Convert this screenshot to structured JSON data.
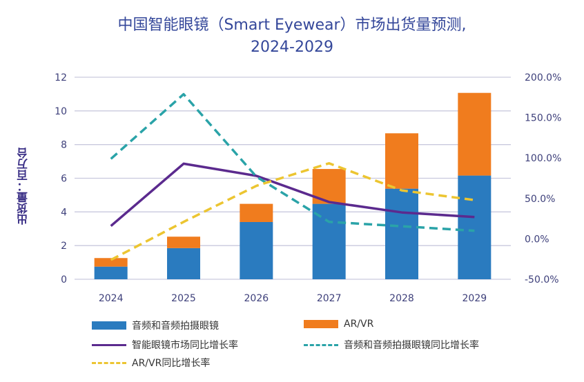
{
  "title_line1": "中国智能眼镜（Smart Eyewear）市场出货量预测,",
  "title_line2": "2024-2029",
  "chart_data": {
    "type": "bar",
    "title": "中国智能眼镜（Smart Eyewear）市场出货量预测, 2024-2029",
    "ylabel": "出货量：百万台",
    "categories": [
      "2024",
      "2025",
      "2026",
      "2027",
      "2028",
      "2029"
    ],
    "ylim": [
      0,
      12
    ],
    "yticks": [
      "0",
      "2",
      "4",
      "6",
      "8",
      "10",
      "12"
    ],
    "y2lim": [
      -50,
      200
    ],
    "y2ticks": [
      "-50.0%",
      "0.0%",
      "50.0%",
      "100.0%",
      "150.0%",
      "200.0%"
    ],
    "stacked": true,
    "series": [
      {
        "name": "音频和音频拍摄眼镜",
        "type": "bar",
        "axis": "left",
        "color": "#2a7bbf",
        "values": [
          0.75,
          1.85,
          3.4,
          4.48,
          5.38,
          6.16
        ]
      },
      {
        "name": "AR/VR",
        "type": "bar",
        "axis": "left",
        "color": "#f07c1e",
        "values": [
          0.51,
          0.68,
          1.08,
          2.07,
          3.29,
          4.91
        ]
      },
      {
        "name": "智能眼镜市场同比增长率",
        "type": "line",
        "axis": "right",
        "style": "solid",
        "color": "#5b2a8e",
        "values": [
          16,
          93,
          78,
          45.6,
          32.7,
          27
        ]
      },
      {
        "name": "音频和音频拍摄眼镜同比增长率",
        "type": "line",
        "axis": "right",
        "style": "dashed",
        "color": "#2aa3a8",
        "values": [
          99,
          179,
          77,
          21,
          15.6,
          10
        ]
      },
      {
        "name": "AR/VR同比增长率",
        "type": "line",
        "axis": "right",
        "style": "dashed",
        "color": "#ecc531",
        "values": [
          -26,
          21,
          65.6,
          93.5,
          60,
          48
        ]
      }
    ],
    "grid": true,
    "legend": "bottom"
  }
}
